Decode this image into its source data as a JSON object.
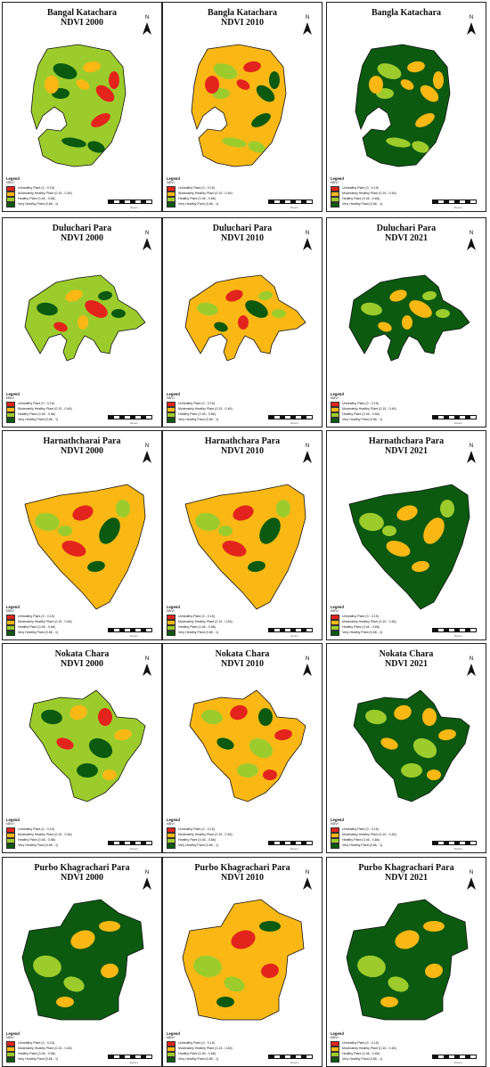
{
  "colors": {
    "unhealthy": "#e3241c",
    "moderate": "#fbb814",
    "healthy": "#9ccc2c",
    "very_healthy": "#0b5a10"
  },
  "legend": {
    "title": "Legend",
    "subtitle": "NDVI",
    "classes": [
      {
        "label": "Unhealthy Plant (0 - 0.15)",
        "color": "#e3241c"
      },
      {
        "label": "Moderately Healthy Plant (0.15 - 0.46)",
        "color": "#fbb814"
      },
      {
        "label": "Healthy Plant (0.46 - 0.66)",
        "color": "#9ccc2c"
      },
      {
        "label": "Very Healthy Plant (0.66 - 1)",
        "color": "#0b5a10"
      }
    ]
  },
  "north_label": "N",
  "scale_label": "Meters",
  "maps": [
    {
      "title": "Bangal Katachara",
      "subtitle": "NDVI 2000",
      "shape": 0,
      "dominant": "healthy"
    },
    {
      "title": "Bangla Katachara",
      "subtitle": "NDVI 2010",
      "shape": 0,
      "dominant": "moderate"
    },
    {
      "title": "Bangla Katachara",
      "subtitle": "",
      "shape": 0,
      "dominant": "very_healthy"
    },
    {
      "title": "Duluchari Para",
      "subtitle": "NDVI 2000",
      "shape": 1,
      "dominant": "healthy"
    },
    {
      "title": "Duluchari Para",
      "subtitle": "NDVI 2010",
      "shape": 1,
      "dominant": "moderate"
    },
    {
      "title": "Duluchari Para",
      "subtitle": "NDVI 2021",
      "shape": 1,
      "dominant": "very_healthy"
    },
    {
      "title": "Harnathcharai Para",
      "subtitle": "NDVI 2000",
      "shape": 2,
      "dominant": "moderate"
    },
    {
      "title": "Harnathchara Para",
      "subtitle": "NDVI 2010",
      "shape": 2,
      "dominant": "moderate"
    },
    {
      "title": "Harnathchara Para",
      "subtitle": "NDVI 2021",
      "shape": 2,
      "dominant": "very_healthy"
    },
    {
      "title": "Nokata Chara",
      "subtitle": "NDVI 2000",
      "shape": 3,
      "dominant": "healthy"
    },
    {
      "title": "Nokata Chara",
      "subtitle": "NDVI 2010",
      "shape": 3,
      "dominant": "moderate"
    },
    {
      "title": "Nokata Chara",
      "subtitle": "NDVI 2021",
      "shape": 3,
      "dominant": "very_healthy"
    },
    {
      "title": "Purbo Khagrachari Para",
      "subtitle": "NDVI 2000",
      "shape": 4,
      "dominant": "very_healthy"
    },
    {
      "title": "Purbo Khagrachari Para",
      "subtitle": "NDVI 2010",
      "shape": 4,
      "dominant": "moderate"
    },
    {
      "title": "Purbo Khagrachari Para",
      "subtitle": "NDVI 2021",
      "shape": 4,
      "dominant": "very_healthy"
    }
  ]
}
